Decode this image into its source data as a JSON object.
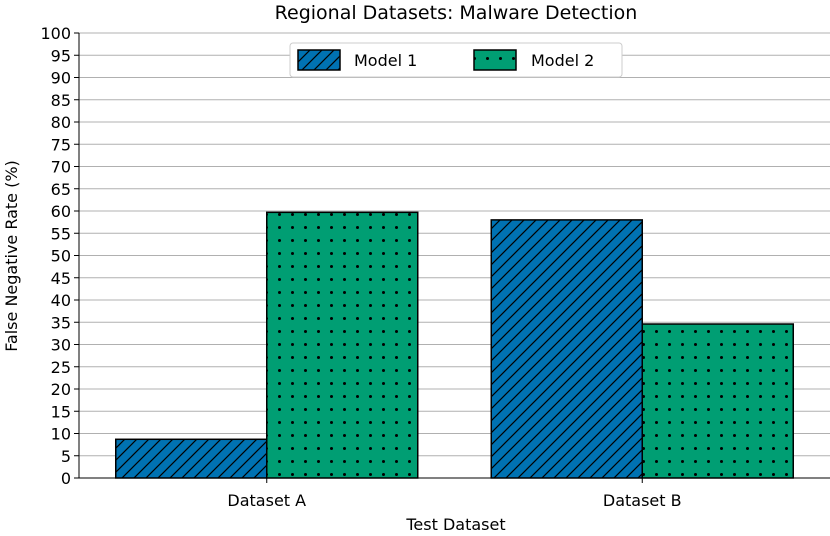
{
  "chart_data": {
    "type": "bar",
    "title": "Regional Datasets: Malware Detection",
    "xlabel": "Test Dataset",
    "ylabel": "False Negative Rate (%)",
    "categories": [
      "Dataset A",
      "Dataset B"
    ],
    "series": [
      {
        "name": "Model 1",
        "values": [
          8.7,
          58.0
        ],
        "color": "#0072b2",
        "pattern": "diagonal-hatch"
      },
      {
        "name": "Model 2",
        "values": [
          59.7,
          34.6
        ],
        "color": "#009e73",
        "pattern": "dots"
      }
    ],
    "ylim": [
      0,
      100
    ],
    "yticks": [
      0,
      5,
      10,
      15,
      20,
      25,
      30,
      35,
      40,
      45,
      50,
      55,
      60,
      65,
      70,
      75,
      80,
      85,
      90,
      95,
      100
    ],
    "grid": "horizontal",
    "legend": "top-center"
  }
}
